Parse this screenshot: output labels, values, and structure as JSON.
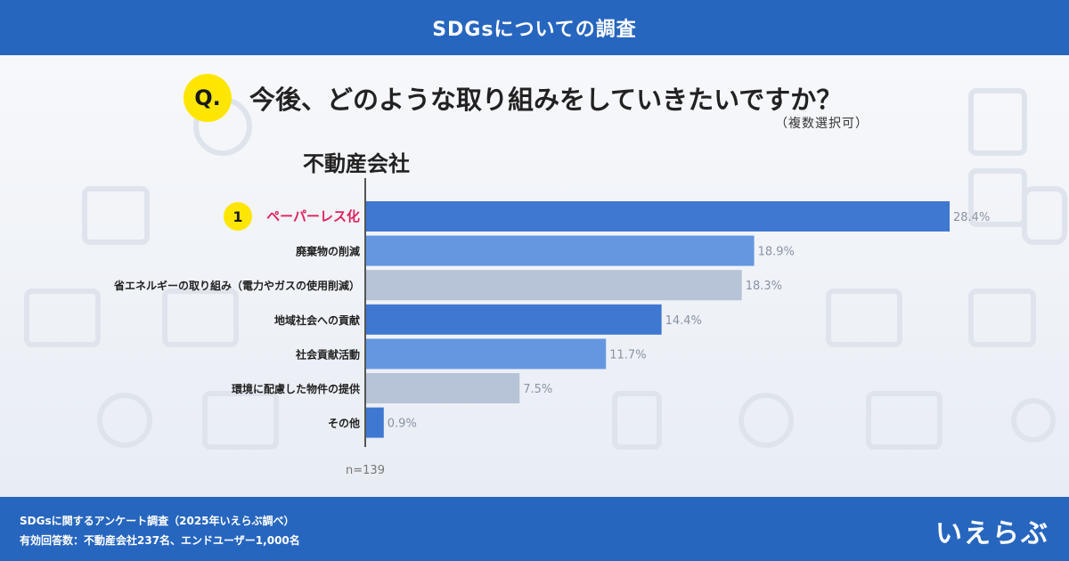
{
  "header": {
    "title": "SDGsについての調査"
  },
  "question": {
    "badge": "Q.",
    "text": "今後、どのような取り組みをしていきたいですか？",
    "note": "（複数選択可）"
  },
  "segment_title": "不動産会社",
  "colors": {
    "header_bg": "#2766bf",
    "rank1_text": "#e0245e",
    "badge_yellow": "#ffe600",
    "bar_dark": "#3f78d0",
    "bar_mid": "#6497df",
    "bar_gray": "#b7c3d6",
    "value_text": "#8a93a3"
  },
  "rank_badge": "1",
  "chart_data": {
    "type": "bar",
    "orientation": "horizontal",
    "categories": [
      "ペーパーレス化",
      "廃棄物の削減",
      "省エネルギーの取り組み（電力やガスの使用削減）",
      "地域社会への貢献",
      "社会貢献活動",
      "環境に配慮した物件の提供",
      "その他"
    ],
    "values": [
      28.4,
      18.9,
      18.3,
      14.4,
      11.7,
      7.5,
      0.9
    ],
    "value_unit": "%",
    "sample_size": "n=139",
    "xlim": [
      0,
      28.4
    ]
  },
  "footer": {
    "line1": "SDGsに関するアンケート調査（2025年いえらぶ調べ）",
    "line2": "有効回答数：不動産会社237名、エンドユーザー1,000名",
    "logo": "いえらぶ"
  }
}
